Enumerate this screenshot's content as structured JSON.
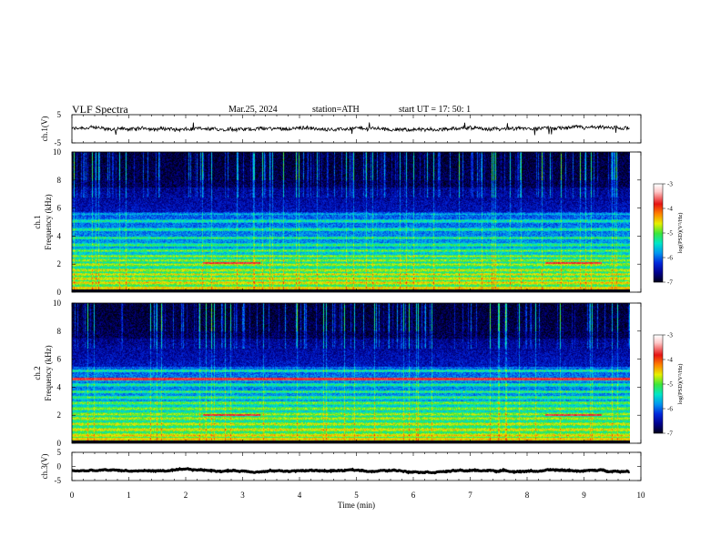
{
  "header": {
    "title": "VLF  Spectra",
    "date": "Mar.25, 2024",
    "station": "station=ATH",
    "start_ut": "start  UT  =   17: 50: 1"
  },
  "chart_data": [
    {
      "type": "line",
      "panel": "ch1-waveform",
      "ylabel": "ch.1(V)",
      "ylim": [
        -5,
        5
      ],
      "yticks": [
        "5",
        "-5"
      ],
      "xlim": [
        0,
        10
      ],
      "trace_baseline": 0,
      "trace_span_min": [
        0,
        9.8
      ]
    },
    {
      "type": "heatmap",
      "panel": "ch1-spectrogram",
      "ylabel": "ch.1\nFrequency (kHz)",
      "ylim": [
        0,
        10
      ],
      "yticks": [
        "0",
        "2",
        "4",
        "6",
        "8",
        "10"
      ],
      "xlim": [
        0,
        10
      ],
      "data_span_min": [
        0,
        9.8
      ],
      "colorbar": {
        "label": "log(PSD)(V²/Hz)",
        "range": [
          -7,
          -3
        ],
        "ticks": [
          "-3",
          "-4",
          "-5",
          "-6",
          "-7"
        ]
      },
      "bands_khz": [
        0.7,
        1.0,
        1.3,
        1.6,
        2.0,
        2.3,
        2.6,
        3.0,
        3.4,
        3.9,
        4.5,
        5.1,
        5.6
      ],
      "strong_segments": [
        {
          "t_min": [
            2.3,
            3.3
          ],
          "f_khz": 2.1
        },
        {
          "t_min": [
            8.3,
            9.3
          ],
          "f_khz": 2.1
        }
      ]
    },
    {
      "type": "heatmap",
      "panel": "ch2-spectrogram",
      "ylabel": "ch.2\nFrequency (kHz)",
      "ylim": [
        0,
        10
      ],
      "yticks": [
        "0",
        "2",
        "4",
        "6",
        "8",
        "10"
      ],
      "xlim": [
        0,
        10
      ],
      "data_span_min": [
        0,
        9.8
      ],
      "colorbar": {
        "label": "log(PSD)(V²/Hz)",
        "range": [
          -7,
          -3
        ],
        "ticks": [
          "-3",
          "-4",
          "-5",
          "-6",
          "-7"
        ]
      },
      "bands_khz": [
        0.6,
        1.0,
        1.4,
        1.8,
        2.1,
        2.5,
        2.9,
        3.3,
        3.7,
        4.2,
        4.6,
        5.2
      ],
      "strong_segments": [
        {
          "t_min": [
            2.3,
            3.3
          ],
          "f_khz": 2.05
        },
        {
          "t_min": [
            8.3,
            9.3
          ],
          "f_khz": 2.05
        },
        {
          "t_min": [
            0.0,
            9.8
          ],
          "f_khz": 4.6
        }
      ]
    },
    {
      "type": "line",
      "panel": "ch3-waveform",
      "ylabel": "ch.3(V)",
      "ylim": [
        -5,
        5
      ],
      "yticks": [
        "5",
        "0",
        "-5"
      ],
      "xlim": [
        0,
        10
      ],
      "trace_baseline": -1.5,
      "trace_span_min": [
        0,
        9.8
      ]
    }
  ],
  "xaxis": {
    "label": "Time  (min)",
    "ticks": [
      "0",
      "1",
      "2",
      "3",
      "4",
      "5",
      "6",
      "7",
      "8",
      "9",
      "10"
    ]
  }
}
